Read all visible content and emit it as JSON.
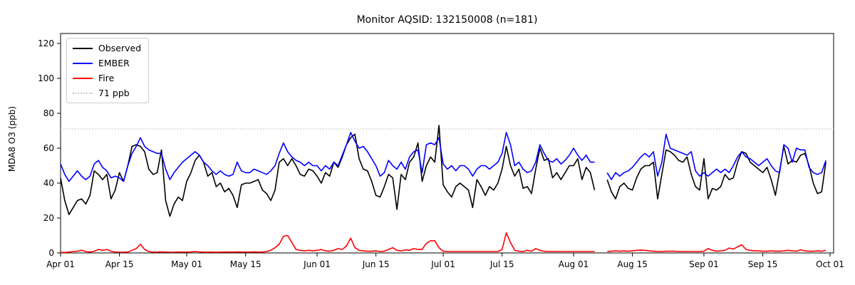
{
  "chart_data": {
    "type": "line",
    "title": "Monitor AQSID: 132150008 (n=181)",
    "ylabel": "MDA8 O3 (ppb)",
    "xlabel": "",
    "ylim": [
      0,
      125
    ],
    "grid": false,
    "legend_position": "upper left",
    "x_unit": "day (Apr 01 = 0)",
    "x_range_days": 183,
    "x_tick_labels": [
      "Apr 01",
      "Apr 15",
      "May 01",
      "May 15",
      "Jun 01",
      "Jun 15",
      "Jul 01",
      "Jul 15",
      "Aug 01",
      "Aug 15",
      "Sep 01",
      "Sep 15",
      "Oct 01"
    ],
    "x_tick_days": [
      0,
      14,
      30,
      44,
      61,
      75,
      91,
      105,
      122,
      136,
      153,
      167,
      183
    ],
    "y_ticks": [
      0,
      20,
      40,
      60,
      80,
      100,
      120
    ],
    "threshold": {
      "label": "71 ppb",
      "value": 71,
      "color": "#c8c8c8"
    },
    "data_gap_days": [
      "Aug 07",
      "Aug 08"
    ],
    "series": [
      {
        "name": "Observed",
        "color": "#000000",
        "values": [
          43,
          30,
          22,
          26,
          30,
          31,
          28,
          33,
          47,
          45,
          42,
          45,
          31,
          36,
          46,
          41,
          50,
          61,
          62,
          61,
          58,
          48,
          45,
          46,
          59,
          30,
          21,
          28,
          32,
          30,
          41,
          46,
          53,
          56,
          52,
          44,
          46,
          38,
          40,
          35,
          37,
          33,
          26,
          39,
          40,
          40,
          41,
          42,
          36,
          34,
          30,
          36,
          52,
          54,
          50,
          54,
          50,
          45,
          44,
          48,
          47,
          44,
          40,
          46,
          44,
          52,
          49,
          55,
          62,
          66,
          68,
          54,
          48,
          47,
          41,
          33,
          32,
          38,
          45,
          43,
          25,
          45,
          42,
          52,
          55,
          63,
          41,
          50,
          55,
          52,
          73,
          39,
          35,
          32,
          38,
          40,
          38,
          36,
          26,
          42,
          38,
          33,
          38,
          36,
          40,
          48,
          61,
          50,
          44,
          48,
          37,
          38,
          34,
          48,
          60,
          53,
          54,
          43,
          46,
          42,
          46,
          50,
          50,
          54,
          42,
          49,
          46,
          36,
          null,
          null,
          42,
          35,
          31,
          38,
          40,
          37,
          36,
          43,
          48,
          50,
          50,
          52,
          31,
          45,
          59,
          58,
          56,
          53,
          52,
          55,
          45,
          38,
          36,
          54,
          31,
          37,
          36,
          38,
          45,
          42,
          43,
          52,
          58,
          57,
          52,
          50,
          48,
          46,
          49,
          42,
          33,
          47,
          61,
          51,
          53,
          52,
          56,
          57,
          50,
          40,
          34,
          35,
          52
        ]
      },
      {
        "name": "EMBER",
        "color": "#0000ff",
        "values": [
          51,
          45,
          41,
          44,
          47,
          44,
          42,
          44,
          51,
          53,
          49,
          47,
          43,
          44,
          43,
          41,
          50,
          57,
          61,
          66,
          61,
          59,
          58,
          57,
          57,
          48,
          42,
          46,
          49,
          52,
          54,
          56,
          58,
          56,
          52,
          50,
          47,
          45,
          47,
          45,
          44,
          45,
          52,
          47,
          46,
          46,
          48,
          47,
          46,
          45,
          47,
          50,
          57,
          63,
          58,
          55,
          53,
          52,
          50,
          52,
          50,
          50,
          47,
          50,
          48,
          52,
          50,
          56,
          62,
          69,
          64,
          60,
          61,
          58,
          54,
          50,
          44,
          46,
          53,
          50,
          48,
          52,
          48,
          55,
          58,
          59,
          46,
          62,
          63,
          62,
          66,
          51,
          48,
          50,
          47,
          50,
          50,
          48,
          44,
          48,
          50,
          50,
          48,
          50,
          52,
          57,
          69,
          62,
          50,
          52,
          48,
          46,
          47,
          52,
          62,
          57,
          53,
          52,
          54,
          51,
          53,
          56,
          60,
          56,
          53,
          56,
          52,
          52,
          null,
          null,
          46,
          42,
          46,
          44,
          46,
          47,
          49,
          52,
          55,
          57,
          55,
          58,
          44,
          52,
          68,
          60,
          59,
          58,
          57,
          56,
          58,
          47,
          44,
          46,
          44,
          46,
          48,
          46,
          48,
          46,
          50,
          55,
          58,
          55,
          54,
          52,
          50,
          52,
          54,
          50,
          47,
          46,
          62,
          60,
          52,
          60,
          59,
          59,
          49,
          46,
          45,
          46,
          53
        ]
      },
      {
        "name": "Fire",
        "color": "#ff0000",
        "values": [
          0.3,
          0.3,
          0.5,
          0.8,
          1,
          1.6,
          0.8,
          0.5,
          1,
          2,
          1.5,
          2,
          1,
          0.5,
          0.4,
          0.4,
          0.5,
          1.5,
          2.5,
          5,
          2,
          0.8,
          0.5,
          0.5,
          0.6,
          0.5,
          0.4,
          0.4,
          0.5,
          0.5,
          0.5,
          0.6,
          0.8,
          0.6,
          0.5,
          0.5,
          0.5,
          0.4,
          0.5,
          0.5,
          0.5,
          0.5,
          0.6,
          0.5,
          0.5,
          0.5,
          0.6,
          0.5,
          0.5,
          0.8,
          1.5,
          3,
          5,
          9.5,
          10,
          6,
          2,
          1.5,
          1.2,
          1.5,
          1.2,
          1.5,
          2,
          1.2,
          1,
          1.5,
          2.5,
          2,
          4,
          8.5,
          3,
          1.5,
          1.2,
          1,
          1,
          1.2,
          0.8,
          1,
          2,
          3,
          1.5,
          1.2,
          1.8,
          1.5,
          2.5,
          2,
          2,
          5.5,
          7,
          7,
          3,
          1,
          0.8,
          0.8,
          0.8,
          0.8,
          0.8,
          0.8,
          0.8,
          0.8,
          0.8,
          0.8,
          0.8,
          0.8,
          0.8,
          2,
          11.5,
          6,
          1.5,
          1,
          0.8,
          1.5,
          1,
          2.5,
          1.5,
          1,
          0.8,
          0.8,
          0.8,
          0.8,
          0.8,
          0.8,
          0.8,
          0.8,
          0.8,
          0.8,
          0.8,
          0.8,
          null,
          null,
          0.8,
          1,
          1.2,
          1,
          1.2,
          1,
          1.2,
          1.5,
          1.6,
          1.5,
          1.2,
          1,
          0.8,
          0.8,
          1,
          1,
          1,
          0.8,
          0.8,
          0.8,
          0.8,
          0.8,
          0.8,
          1,
          2.5,
          1.5,
          1,
          1.2,
          1.5,
          2.8,
          2.2,
          3.5,
          4.7,
          2,
          1.5,
          1.2,
          1.2,
          1,
          1,
          1.2,
          1,
          1,
          1.2,
          1.5,
          1.2,
          1,
          1.8,
          1.2,
          1,
          1,
          1.2,
          1,
          1.5
        ]
      }
    ]
  }
}
